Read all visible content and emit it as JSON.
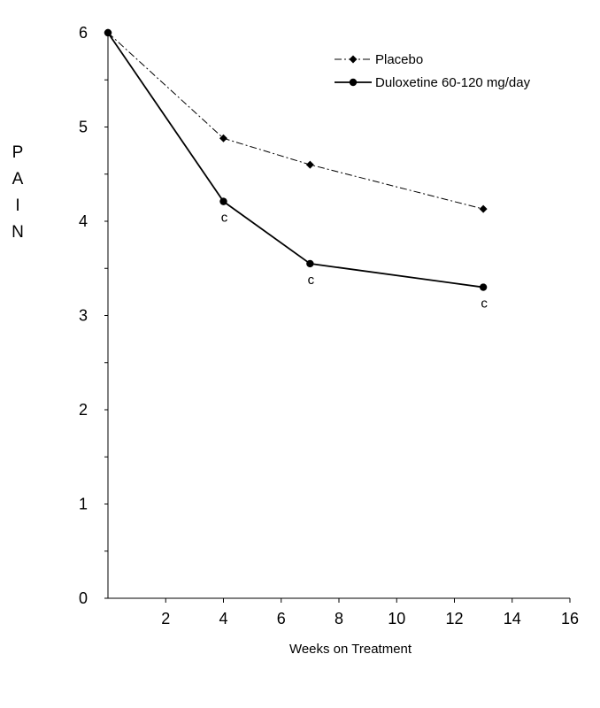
{
  "chart_data": {
    "type": "line",
    "xlabel": "Weeks on Treatment",
    "ylabel": "PAIN",
    "xlim": [
      0,
      16
    ],
    "ylim": [
      0,
      6
    ],
    "x_ticks": [
      2,
      4,
      6,
      8,
      10,
      12,
      14,
      16
    ],
    "y_ticks": [
      0,
      1,
      2,
      3,
      4,
      5,
      6
    ],
    "grid": false,
    "legend_position": "top-right",
    "series": [
      {
        "name": "Placebo",
        "x": [
          0,
          4,
          7,
          13
        ],
        "y": [
          6.0,
          4.88,
          4.6,
          4.13
        ],
        "marker": "diamond",
        "line_style": "dash-dot",
        "color": "#000000"
      },
      {
        "name": "Duloxetine 60-120 mg/day",
        "x": [
          0,
          4,
          7,
          13
        ],
        "y": [
          6.0,
          4.21,
          3.55,
          3.3
        ],
        "marker": "circle",
        "line_style": "solid",
        "color": "#000000"
      }
    ],
    "annotations": [
      {
        "text": "c",
        "x": 4,
        "series": "Duloxetine 60-120 mg/day"
      },
      {
        "text": "c",
        "x": 7,
        "series": "Duloxetine 60-120 mg/day"
      },
      {
        "text": "c",
        "x": 13,
        "series": "Duloxetine 60-120 mg/day"
      }
    ]
  }
}
